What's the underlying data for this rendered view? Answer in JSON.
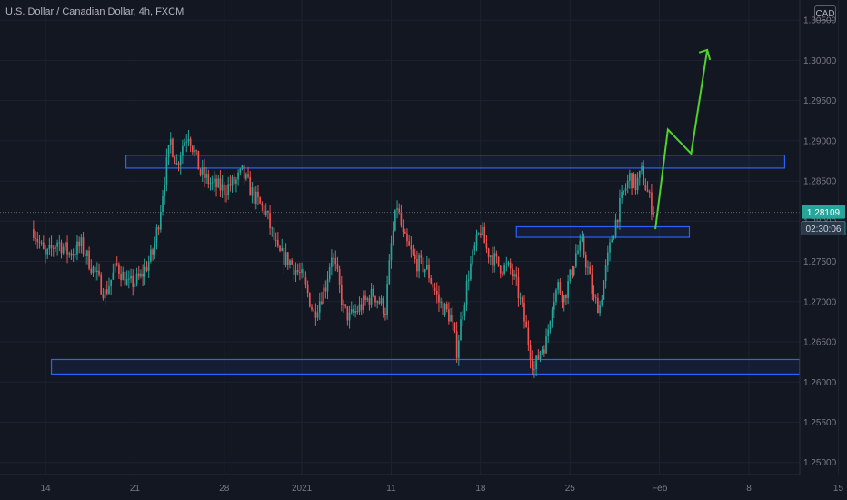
{
  "header": {
    "title": "U.S. Dollar / Canadian Dollar, 4h, FXCM"
  },
  "price_axis": {
    "unit": "CAD"
  },
  "badges": {
    "price": "1.28109",
    "countdown": "02:30:06"
  },
  "colors": {
    "background": "#131722",
    "up": "#26a69a",
    "down": "#ef5350",
    "zone": "#2962ff",
    "arrow": "#4fd12e",
    "price_badge": "#26a69a",
    "countdown_badge": "#2a3a4a"
  },
  "chart_data": {
    "type": "candlestick",
    "symbol": "USDCAD",
    "timeframe": "4h",
    "ylim": [
      1.2485,
      1.3075
    ],
    "yticks": [
      "1.30500",
      "1.30000",
      "1.29500",
      "1.29000",
      "1.28500",
      "1.28000",
      "1.27500",
      "1.27000",
      "1.26500",
      "1.26000",
      "1.25500",
      "1.25000"
    ],
    "xticks": [
      {
        "label": "14",
        "i": 2
      },
      {
        "label": "21",
        "i": 17
      },
      {
        "label": "28",
        "i": 32
      },
      {
        "label": "2021",
        "i": 45
      },
      {
        "label": "11",
        "i": 60
      },
      {
        "label": "18",
        "i": 75
      },
      {
        "label": "25",
        "i": 90
      },
      {
        "label": "Feb",
        "i": 105
      },
      {
        "label": "8",
        "i": 120
      },
      {
        "label": "15",
        "i": 135
      }
    ],
    "last_price": 1.28109,
    "anchors": [
      [
        0,
        1.279
      ],
      [
        2,
        1.2755
      ],
      [
        4,
        1.2775
      ],
      [
        6,
        1.276
      ],
      [
        8,
        1.277
      ],
      [
        10,
        1.274
      ],
      [
        12,
        1.271
      ],
      [
        14,
        1.2745
      ],
      [
        16,
        1.272
      ],
      [
        18,
        1.273
      ],
      [
        20,
        1.276
      ],
      [
        21,
        1.28
      ],
      [
        22,
        1.2855
      ],
      [
        23,
        1.29
      ],
      [
        24,
        1.287
      ],
      [
        25,
        1.2895
      ],
      [
        26,
        1.291
      ],
      [
        27,
        1.2885
      ],
      [
        28,
        1.286
      ],
      [
        30,
        1.2845
      ],
      [
        32,
        1.284
      ],
      [
        34,
        1.285
      ],
      [
        35,
        1.286
      ],
      [
        37,
        1.283
      ],
      [
        39,
        1.281
      ],
      [
        41,
        1.276
      ],
      [
        43,
        1.275
      ],
      [
        45,
        1.273
      ],
      [
        46,
        1.271
      ],
      [
        47,
        1.2685
      ],
      [
        49,
        1.272
      ],
      [
        50,
        1.276
      ],
      [
        51,
        1.273
      ],
      [
        52,
        1.269
      ],
      [
        53,
        1.268
      ],
      [
        55,
        1.2695
      ],
      [
        57,
        1.271
      ],
      [
        59,
        1.269
      ],
      [
        60,
        1.277
      ],
      [
        61,
        1.282
      ],
      [
        62,
        1.278
      ],
      [
        64,
        1.275
      ],
      [
        66,
        1.274
      ],
      [
        68,
        1.27
      ],
      [
        70,
        1.268
      ],
      [
        71,
        1.264
      ],
      [
        72,
        1.269
      ],
      [
        73,
        1.2735
      ],
      [
        74,
        1.2765
      ],
      [
        75,
        1.279
      ],
      [
        76,
        1.2765
      ],
      [
        78,
        1.2745
      ],
      [
        80,
        1.274
      ],
      [
        81,
        1.272
      ],
      [
        82,
        1.269
      ],
      [
        83,
        1.265
      ],
      [
        84,
        1.2615
      ],
      [
        85,
        1.264
      ],
      [
        86,
        1.265
      ],
      [
        87,
        1.27
      ],
      [
        88,
        1.272
      ],
      [
        89,
        1.2705
      ],
      [
        90,
        1.273
      ],
      [
        91,
        1.276
      ],
      [
        92,
        1.277
      ],
      [
        93,
        1.274
      ],
      [
        94,
        1.27
      ],
      [
        95,
        1.2695
      ],
      [
        96,
        1.274
      ],
      [
        97,
        1.278
      ],
      [
        98,
        1.281
      ],
      [
        99,
        1.2835
      ],
      [
        100,
        1.2855
      ],
      [
        101,
        1.2845
      ],
      [
        102,
        1.286
      ],
      [
        103,
        1.2835
      ],
      [
        104,
        1.2811
      ]
    ],
    "zones": [
      {
        "from": 15.5,
        "to": 126.0,
        "high": 1.2882,
        "low": 1.2866
      },
      {
        "from": 81.0,
        "to": 110.0,
        "high": 1.2793,
        "low": 1.278
      },
      {
        "from": 3.0,
        "to": 128.5,
        "high": 1.2628,
        "low": 1.261
      }
    ],
    "projection": [
      [
        104.3,
        1.279
      ],
      [
        106.4,
        1.2914
      ],
      [
        110.3,
        1.2884
      ],
      [
        113.0,
        1.3013
      ]
    ]
  }
}
